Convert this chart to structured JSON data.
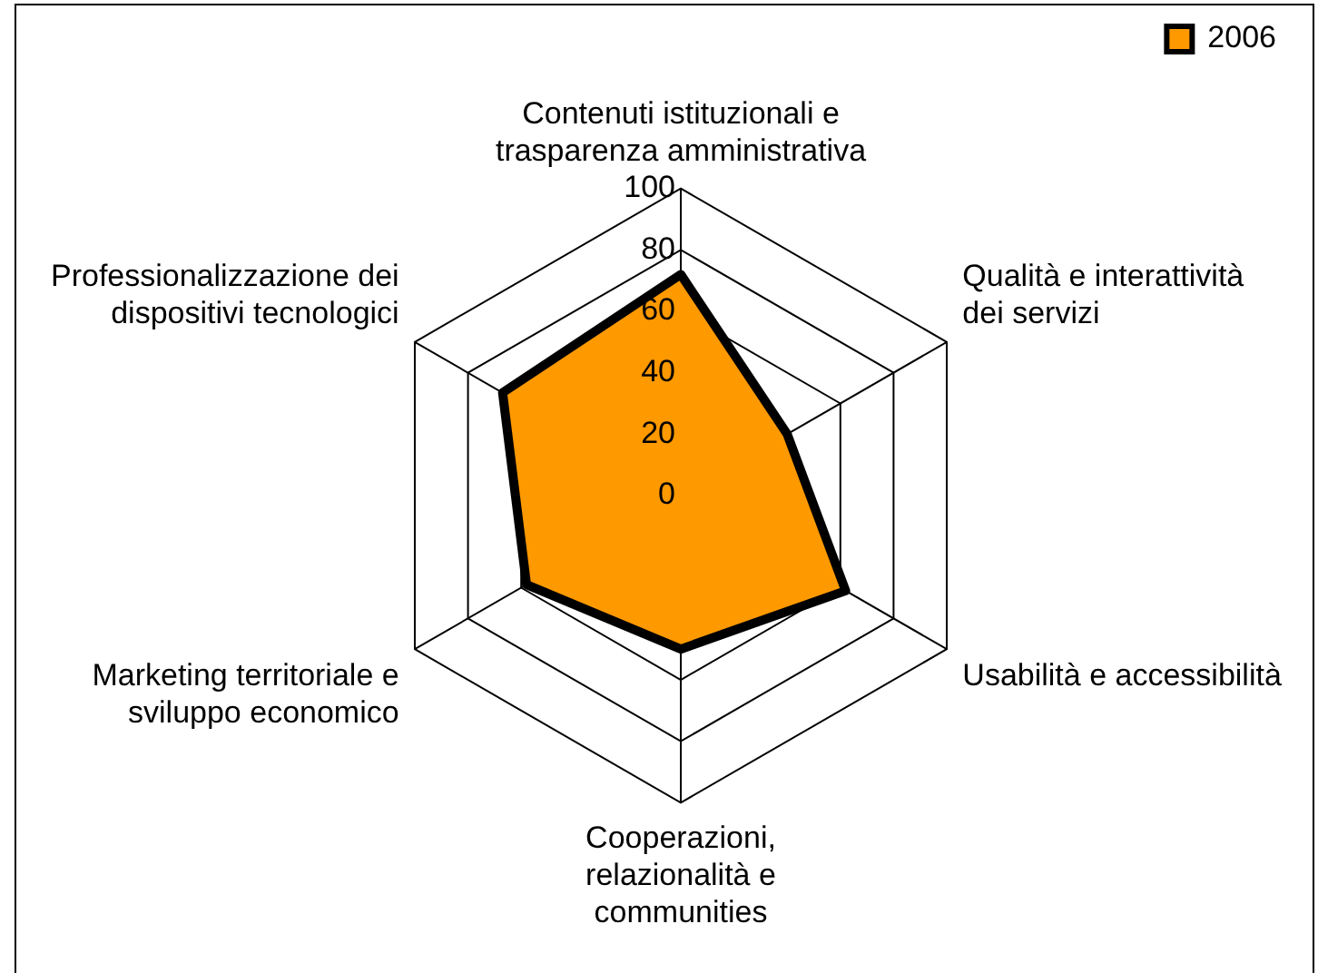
{
  "chart_data": {
    "type": "radar",
    "categories": [
      "Contenuti istituzionali e trasparenza amministrativa",
      "Qualità e interattività dei servizi",
      "Usabilità e accessibilità",
      "Cooperazioni, relazionalità e communities",
      "Marketing territoriale e sviluppo economico",
      "Professionalizzazione dei dispositivi tecnologici"
    ],
    "series": [
      {
        "name": "2006",
        "color": "#ff9900",
        "values": [
          72,
          40,
          62,
          50,
          58,
          67
        ]
      }
    ],
    "ylim": [
      0,
      100
    ],
    "yticks": [
      0,
      20,
      40,
      60,
      80,
      100
    ],
    "grid": true,
    "legend": "top right",
    "marker": "none"
  }
}
